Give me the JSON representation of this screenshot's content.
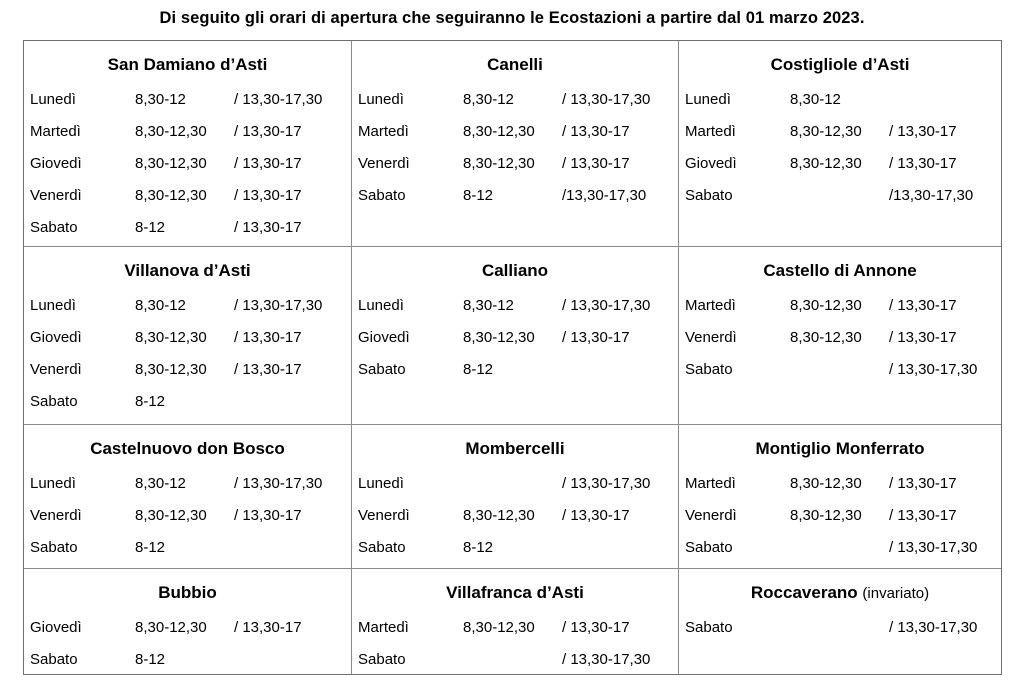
{
  "title": "Di seguito gli orari di apertura che seguiranno le Ecostazioni a partire dal 01 marzo 2023.",
  "cells": [
    {
      "name": "San Damiano d’Asti",
      "suffix": "",
      "hours": [
        {
          "day": "Lunedì",
          "am": "8,30-12",
          "pm": "/ 13,30-17,30"
        },
        {
          "day": "Martedì",
          "am": "8,30-12,30",
          "pm": "/ 13,30-17"
        },
        {
          "day": "Giovedì",
          "am": "8,30-12,30",
          "pm": "/ 13,30-17"
        },
        {
          "day": "Venerdì",
          "am": "8,30-12,30",
          "pm": "/ 13,30-17"
        },
        {
          "day": "Sabato",
          "am": "8-12",
          "pm": "/ 13,30-17"
        }
      ]
    },
    {
      "name": "Canelli",
      "suffix": "",
      "hours": [
        {
          "day": "Lunedì",
          "am": "8,30-12",
          "pm": "/ 13,30-17,30"
        },
        {
          "day": "Martedì",
          "am": "8,30-12,30",
          "pm": "/ 13,30-17"
        },
        {
          "day": "Venerdì",
          "am": "8,30-12,30",
          "pm": "/ 13,30-17"
        },
        {
          "day": "Sabato",
          "am": "8-12",
          "pm": "/13,30-17,30"
        }
      ]
    },
    {
      "name": "Costigliole d’Asti",
      "suffix": "",
      "hours": [
        {
          "day": "Lunedì",
          "am": "8,30-12",
          "pm": ""
        },
        {
          "day": "Martedì",
          "am": "8,30-12,30",
          "pm": "/ 13,30-17"
        },
        {
          "day": "Giovedì",
          "am": "8,30-12,30",
          "pm": "/ 13,30-17"
        },
        {
          "day": "Sabato",
          "am": "",
          "pm": "/13,30-17,30"
        }
      ]
    },
    {
      "name": "Villanova d’Asti",
      "suffix": "",
      "hours": [
        {
          "day": "Lunedì",
          "am": "8,30-12",
          "pm": "/ 13,30-17,30"
        },
        {
          "day": "Giovedì",
          "am": "8,30-12,30",
          "pm": "/ 13,30-17"
        },
        {
          "day": "Venerdì",
          "am": "8,30-12,30",
          "pm": "/ 13,30-17"
        },
        {
          "day": "Sabato",
          "am": "8-12",
          "pm": ""
        }
      ]
    },
    {
      "name": "Calliano",
      "suffix": "",
      "hours": [
        {
          "day": "Lunedì",
          "am": "8,30-12",
          "pm": "/ 13,30-17,30"
        },
        {
          "day": "Giovedì",
          "am": "8,30-12,30",
          "pm": "/ 13,30-17"
        },
        {
          "day": "Sabato",
          "am": "8-12",
          "pm": ""
        }
      ]
    },
    {
      "name": "Castello di Annone",
      "suffix": "",
      "hours": [
        {
          "day": "Martedì",
          "am": "8,30-12,30",
          "pm": "/ 13,30-17"
        },
        {
          "day": "Venerdì",
          "am": "8,30-12,30",
          "pm": "/ 13,30-17"
        },
        {
          "day": "Sabato",
          "am": "",
          "pm": "/ 13,30-17,30"
        }
      ]
    },
    {
      "name": "Castelnuovo don Bosco",
      "suffix": "",
      "hours": [
        {
          "day": "Lunedì",
          "am": "8,30-12",
          "pm": "/ 13,30-17,30"
        },
        {
          "day": "Venerdì",
          "am": "8,30-12,30",
          "pm": "/ 13,30-17"
        },
        {
          "day": "Sabato",
          "am": "8-12",
          "pm": ""
        }
      ]
    },
    {
      "name": "Mombercelli",
      "suffix": "",
      "hours": [
        {
          "day": "Lunedì",
          "am": "",
          "pm": "/ 13,30-17,30"
        },
        {
          "day": "Venerdì",
          "am": "8,30-12,30",
          "pm": "/ 13,30-17"
        },
        {
          "day": "Sabato",
          "am": "8-12",
          "pm": ""
        }
      ]
    },
    {
      "name": "Montiglio Monferrato",
      "suffix": "",
      "hours": [
        {
          "day": "Martedì",
          "am": "8,30-12,30",
          "pm": "/ 13,30-17"
        },
        {
          "day": "Venerdì",
          "am": "8,30-12,30",
          "pm": "/ 13,30-17"
        },
        {
          "day": "Sabato",
          "am": "",
          "pm": "/ 13,30-17,30"
        }
      ]
    },
    {
      "name": "Bubbio",
      "suffix": "",
      "hours": [
        {
          "day": "Giovedì",
          "am": "8,30-12,30",
          "pm": "/ 13,30-17"
        },
        {
          "day": "Sabato",
          "am": "8-12",
          "pm": ""
        }
      ]
    },
    {
      "name": "Villafranca d’Asti",
      "suffix": "",
      "hours": [
        {
          "day": "Martedì",
          "am": "8,30-12,30",
          "pm": "/ 13,30-17"
        },
        {
          "day": "Sabato",
          "am": "",
          "pm": "/ 13,30-17,30"
        }
      ]
    },
    {
      "name": "Roccaverano",
      "suffix": "(invariato)",
      "hours": [
        {
          "day": "Sabato",
          "am": "",
          "pm": "/ 13,30-17,30"
        }
      ]
    }
  ]
}
